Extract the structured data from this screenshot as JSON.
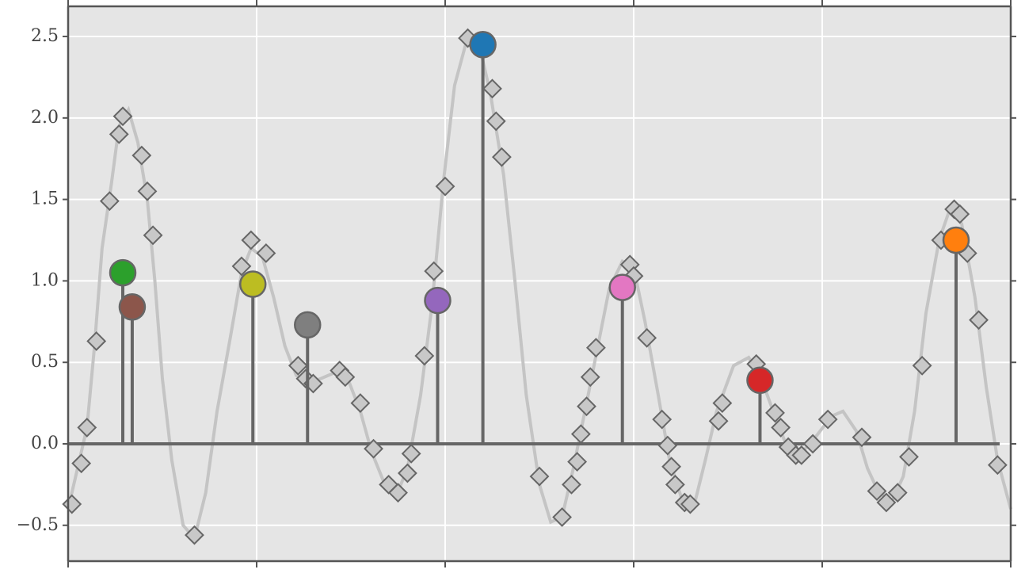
{
  "chart_data": {
    "type": "stem",
    "xlim": [
      0,
      5
    ],
    "xticks": [
      0,
      1,
      2,
      3,
      4,
      5
    ],
    "ylim": [
      -0.72,
      2.685
    ],
    "yticks": [
      {
        "value": -0.5,
        "label": "−0.5"
      },
      {
        "value": 0,
        "label": "0.0"
      },
      0.5,
      {
        "value": 1,
        "label": "1.0"
      },
      1.5,
      {
        "value": 2,
        "label": "2.0"
      },
      2.5
    ],
    "grid": true,
    "curve": {
      "color": "#c4c4c4",
      "x": [
        0,
        0.06,
        0.1,
        0.14,
        0.18,
        0.23,
        0.27,
        0.32,
        0.37,
        0.42,
        0.46,
        0.5,
        0.55,
        0.61,
        0.67,
        0.73,
        0.79,
        0.86,
        0.92,
        0.97,
        1.03,
        1.09,
        1.15,
        1.21,
        1.28,
        1.34,
        1.42,
        1.49,
        1.55,
        1.61,
        1.68,
        1.74,
        1.8,
        1.87,
        1.93,
        1.99,
        2.05,
        2.12,
        2.18,
        2.24,
        2.31,
        2.37,
        2.43,
        2.5,
        2.56,
        2.62,
        2.68,
        2.75,
        2.81,
        2.87,
        2.94,
        3.0,
        3.06,
        3.13,
        3.19,
        3.25,
        3.32,
        3.38,
        3.44,
        3.53,
        3.61,
        3.67,
        3.74,
        3.8,
        3.88,
        3.97,
        4.05,
        4.11,
        4.18,
        4.24,
        4.3,
        4.37,
        4.43,
        4.49,
        4.55,
        4.62,
        4.68,
        4.74,
        4.81,
        4.87,
        4.93,
        5.0
      ],
      "y": [
        -0.4,
        -0.1,
        0.1,
        0.6,
        1.2,
        1.6,
        1.95,
        2.05,
        1.85,
        1.5,
        1.0,
        0.4,
        -0.1,
        -0.5,
        -0.58,
        -0.3,
        0.2,
        0.65,
        1.05,
        1.2,
        1.15,
        0.9,
        0.6,
        0.42,
        0.38,
        0.4,
        0.44,
        0.38,
        0.2,
        -0.05,
        -0.25,
        -0.32,
        -0.15,
        0.3,
        0.85,
        1.6,
        2.2,
        2.5,
        2.45,
        2.15,
        1.65,
        1.0,
        0.3,
        -0.25,
        -0.48,
        -0.45,
        -0.15,
        0.25,
        0.6,
        0.95,
        1.12,
        1.08,
        0.75,
        0.3,
        -0.1,
        -0.32,
        -0.38,
        -0.1,
        0.2,
        0.48,
        0.53,
        0.42,
        0.2,
        0.02,
        -0.07,
        0.05,
        0.17,
        0.2,
        0.08,
        -0.15,
        -0.3,
        -0.35,
        -0.2,
        0.2,
        0.8,
        1.25,
        1.45,
        1.35,
        0.9,
        0.35,
        -0.1,
        -0.4
      ]
    },
    "points": {
      "color": "#c8c8c8",
      "x": [
        0.02,
        0.07,
        0.1,
        0.15,
        0.22,
        0.27,
        0.29,
        0.39,
        0.42,
        0.45,
        0.67,
        0.92,
        0.97,
        1.05,
        1.22,
        1.26,
        1.3,
        1.44,
        1.47,
        1.55,
        1.62,
        1.7,
        1.75,
        1.8,
        1.82,
        1.89,
        1.94,
        2.0,
        2.12,
        2.25,
        2.27,
        2.3,
        2.5,
        2.62,
        2.67,
        2.7,
        2.72,
        2.75,
        2.77,
        2.8,
        2.98,
        3.0,
        3.07,
        3.15,
        3.18,
        3.2,
        3.22,
        3.27,
        3.3,
        3.45,
        3.47,
        3.65,
        3.75,
        3.78,
        3.82,
        3.86,
        3.89,
        3.95,
        4.03,
        4.21,
        4.29,
        4.34,
        4.4,
        4.46,
        4.53,
        4.63,
        4.7,
        4.73,
        4.77,
        4.83,
        4.93
      ],
      "y": [
        -0.37,
        -0.12,
        0.1,
        0.63,
        1.49,
        1.9,
        2.01,
        1.77,
        1.55,
        1.28,
        -0.56,
        1.09,
        1.25,
        1.17,
        0.48,
        0.4,
        0.37,
        0.45,
        0.41,
        0.25,
        -0.03,
        -0.25,
        -0.3,
        -0.18,
        -0.06,
        0.54,
        1.06,
        1.58,
        2.49,
        2.18,
        1.98,
        1.76,
        -0.2,
        -0.45,
        -0.25,
        -0.11,
        0.06,
        0.23,
        0.41,
        0.59,
        1.1,
        1.03,
        0.65,
        0.15,
        -0.01,
        -0.14,
        -0.25,
        -0.36,
        -0.37,
        0.14,
        0.25,
        0.49,
        0.19,
        0.1,
        -0.02,
        -0.07,
        -0.07,
        0.0,
        0.15,
        0.04,
        -0.29,
        -0.36,
        -0.3,
        -0.08,
        0.48,
        1.25,
        1.44,
        1.41,
        1.17,
        0.76,
        -0.13
      ]
    },
    "stems": {
      "line_color": "#666666",
      "x": [
        0.29,
        0.34,
        0.98,
        1.27,
        1.96,
        2.2,
        2.94,
        3.67,
        4.71
      ],
      "y": [
        1.05,
        0.84,
        0.98,
        0.73,
        0.88,
        2.45,
        0.96,
        0.39,
        1.25
      ],
      "colors": [
        "#2ca02c",
        "#8c564b",
        "#bcbd22",
        "#7f7f7f",
        "#9467bd",
        "#1f77b4",
        "#e377c2",
        "#d62728",
        "#ff7f0e"
      ]
    }
  }
}
